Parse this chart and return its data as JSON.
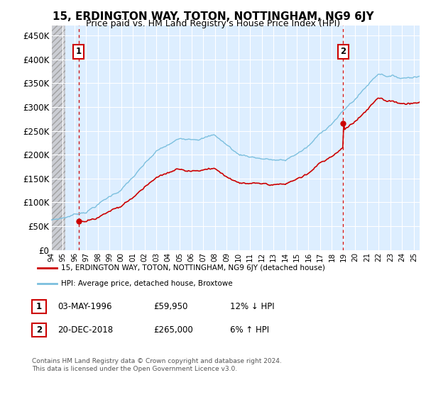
{
  "title": "15, ERDINGTON WAY, TOTON, NOTTINGHAM, NG9 6JY",
  "subtitle": "Price paid vs. HM Land Registry's House Price Index (HPI)",
  "ylabel_ticks": [
    "£0",
    "£50K",
    "£100K",
    "£150K",
    "£200K",
    "£250K",
    "£300K",
    "£350K",
    "£400K",
    "£450K"
  ],
  "ytick_values": [
    0,
    50000,
    100000,
    150000,
    200000,
    250000,
    300000,
    350000,
    400000,
    450000
  ],
  "xlim_start": 1994.0,
  "xlim_end": 2025.5,
  "ylim": [
    0,
    470000
  ],
  "hpi_color": "#7bbfde",
  "price_color": "#cc0000",
  "sale1_date": 1996.34,
  "sale1_price": 59950,
  "sale2_date": 2018.97,
  "sale2_price": 265000,
  "legend_label1": "15, ERDINGTON WAY, TOTON, NOTTINGHAM, NG9 6JY (detached house)",
  "legend_label2": "HPI: Average price, detached house, Broxtowe",
  "table_row1": [
    "1",
    "03-MAY-1996",
    "£59,950",
    "12% ↓ HPI"
  ],
  "table_row2": [
    "2",
    "20-DEC-2018",
    "£265,000",
    "6% ↑ HPI"
  ],
  "footnote": "Contains HM Land Registry data © Crown copyright and database right 2024.\nThis data is licensed under the Open Government Licence v3.0.",
  "background_plot": "#ddeeff",
  "grid_color": "#ffffff",
  "hatch_color": "#c8c8c8",
  "title_fontsize": 11,
  "subtitle_fontsize": 9,
  "annot_box_color": "#cc0000"
}
